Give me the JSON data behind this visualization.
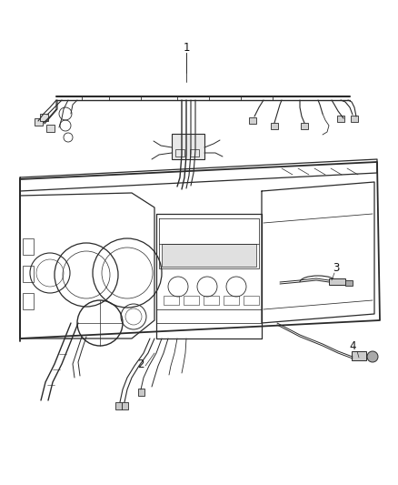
{
  "background_color": "#ffffff",
  "line_color": "#2a2a2a",
  "label_color": "#111111",
  "figsize": [
    4.38,
    5.33
  ],
  "dpi": 100,
  "label_fontsize": 8.5,
  "lw_main": 0.9,
  "lw_thin": 0.55,
  "lw_thick": 1.3
}
